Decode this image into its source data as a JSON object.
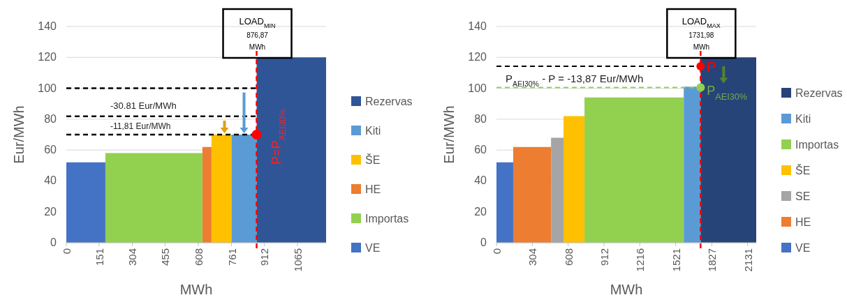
{
  "chart_data": [
    {
      "type": "area",
      "xlabel": "MWh",
      "ylabel": "Eur/MWh",
      "xlim": [
        0,
        1197
      ],
      "ylim": [
        0,
        140
      ],
      "xticks": [
        0,
        151,
        304,
        455,
        608,
        761,
        912,
        1065
      ],
      "yticks": [
        0,
        20,
        40,
        60,
        80,
        100,
        120,
        140
      ],
      "grid": "y",
      "legend": "right",
      "series": [
        {
          "name": "VE",
          "color": "#4472c4",
          "x": [
            0,
            180
          ],
          "values": [
            52,
            52
          ]
        },
        {
          "name": "Importas",
          "color": "#92d050",
          "x": [
            180,
            627
          ],
          "values": [
            58,
            58
          ]
        },
        {
          "name": "HE",
          "color": "#ed7d31",
          "x": [
            627,
            669
          ],
          "values": [
            62,
            62
          ]
        },
        {
          "name": "ŠE",
          "color": "#ffc000",
          "x": [
            669,
            761
          ],
          "values": [
            70,
            70
          ]
        },
        {
          "name": "Kiti",
          "color": "#5b9bd5",
          "x": [
            761,
            876.87
          ],
          "values": [
            70,
            70
          ]
        },
        {
          "name": "Rezervas",
          "color": "#2f5597",
          "x": [
            876.87,
            1197
          ],
          "values": [
            120,
            120
          ]
        },
        {
          "type": "scatter",
          "marker": "circle",
          "colors": [
            "#ff0000"
          ],
          "x": [
            876.87
          ],
          "values": [
            70
          ]
        }
      ],
      "ref_lines": [
        {
          "axis": "x",
          "value": 876.87,
          "color": "#ff0000",
          "line_style": "dashed"
        },
        {
          "axis": "y",
          "value": 100,
          "color": "#000000",
          "line_style": "dashed"
        },
        {
          "axis": "y",
          "value": 81.8,
          "color": "#000000",
          "line_style": "dashed"
        },
        {
          "axis": "y",
          "value": 70,
          "color": "#000000",
          "line_style": "dashed"
        }
      ],
      "annotations": [
        "LOAD$_{MIN}$ 876,87 MWh",
        "-30.81 Eur/MWh",
        "-11,81 Eur/MWh",
        "P=P$_{AEI30%}$"
      ]
    },
    {
      "type": "area",
      "xlabel": "MWh",
      "ylabel": "Eur/MWh",
      "xlim": [
        0,
        2204
      ],
      "ylim": [
        0,
        140
      ],
      "xticks": [
        0,
        304,
        608,
        912,
        1216,
        1521,
        1827,
        2131
      ],
      "yticks": [
        0,
        20,
        40,
        60,
        80,
        100,
        120,
        140
      ],
      "grid": "y",
      "legend": "right",
      "series": [
        {
          "name": "VE",
          "color": "#4472c4",
          "x": [
            0,
            142
          ],
          "values": [
            52,
            52
          ]
        },
        {
          "name": "HE",
          "color": "#ed7d31",
          "x": [
            142,
            463
          ],
          "values": [
            62,
            62
          ]
        },
        {
          "name": "SE",
          "color": "#a5a5a5",
          "x": [
            463,
            569
          ],
          "values": [
            68,
            68
          ]
        },
        {
          "name": "ŠE",
          "color": "#ffc000",
          "x": [
            569,
            747
          ],
          "values": [
            82,
            82
          ]
        },
        {
          "name": "Importas",
          "color": "#92d050",
          "x": [
            747,
            1589
          ],
          "values": [
            94,
            94
          ]
        },
        {
          "name": "Kiti",
          "color": "#5b9bd5",
          "x": [
            1589,
            1731.98
          ],
          "values": [
            101,
            101
          ]
        },
        {
          "name": "Rezervas",
          "color": "#264478",
          "x": [
            1731.98,
            2204
          ],
          "values": [
            120,
            120
          ]
        },
        {
          "type": "scatter",
          "marker": "circle",
          "colors": [
            "#ff0000",
            "#92d050"
          ],
          "x": [
            1731.98,
            1731.98
          ],
          "values": [
            114.3,
            100.5
          ]
        }
      ],
      "ref_lines": [
        {
          "axis": "x",
          "value": 1731.98,
          "color": "#ff0000",
          "line_style": "dashed"
        },
        {
          "axis": "y",
          "value": 114.3,
          "color": "#000000",
          "line_style": "dashed"
        },
        {
          "axis": "y",
          "value": 100.5,
          "color": "#92d050",
          "line_style": "dashed"
        }
      ],
      "annotations": [
        "LOAD$_{MAX}$ 1731,98 MWh",
        "P$_{AEI30%}$ - P =  -13,87 Eur/MWh",
        "P",
        "P$_{AEI30%}$"
      ]
    }
  ]
}
